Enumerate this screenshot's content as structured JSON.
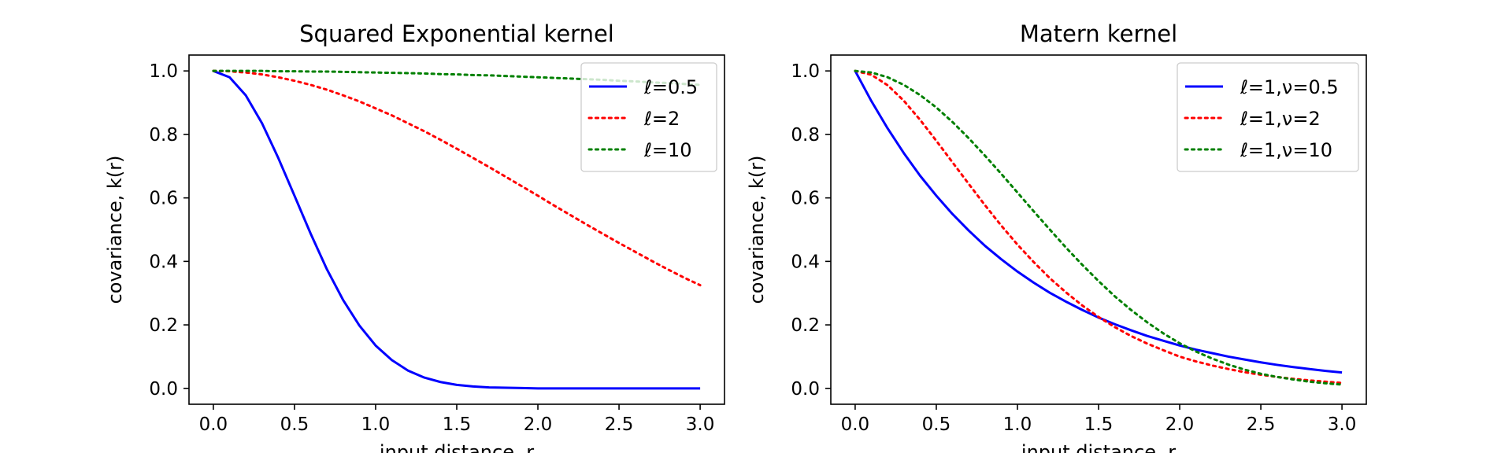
{
  "chart_data": [
    {
      "type": "line",
      "title": "Squared Exponential kernel",
      "xlabel": "input distance, r",
      "ylabel": "covariance, k(r)",
      "xlim": [
        -0.15,
        3.15
      ],
      "ylim": [
        -0.05,
        1.05
      ],
      "xticks": [
        "0.0",
        "0.5",
        "1.0",
        "1.5",
        "2.0",
        "2.5",
        "3.0"
      ],
      "yticks": [
        "0.0",
        "0.2",
        "0.4",
        "0.6",
        "0.8",
        "1.0"
      ],
      "legend_position": "top-right",
      "grid": false,
      "x": [
        0.0,
        0.1,
        0.2,
        0.3,
        0.4,
        0.5,
        0.6,
        0.7,
        0.8,
        0.9,
        1.0,
        1.1,
        1.2,
        1.3,
        1.4,
        1.5,
        1.6,
        1.7,
        1.8,
        1.9,
        2.0,
        2.1,
        2.2,
        2.3,
        2.4,
        2.5,
        2.6,
        2.7,
        2.8,
        2.9,
        3.0
      ],
      "series": [
        {
          "name": "ℓ=0.5",
          "color": "#0000ff",
          "dash": "solid",
          "values": [
            1.0,
            0.98,
            0.923,
            0.835,
            0.726,
            0.607,
            0.487,
            0.375,
            0.278,
            0.198,
            0.135,
            0.089,
            0.056,
            0.034,
            0.02,
            0.011,
            0.006,
            0.003,
            0.002,
            0.001,
            0.0,
            0.0,
            0.0,
            0.0,
            0.0,
            0.0,
            0.0,
            0.0,
            0.0,
            0.0,
            0.0
          ]
        },
        {
          "name": "ℓ=2",
          "color": "#ff0000",
          "dash": "dotted",
          "values": [
            1.0,
            0.999,
            0.995,
            0.989,
            0.98,
            0.969,
            0.956,
            0.941,
            0.923,
            0.904,
            0.882,
            0.86,
            0.835,
            0.81,
            0.783,
            0.755,
            0.726,
            0.697,
            0.667,
            0.637,
            0.607,
            0.576,
            0.546,
            0.516,
            0.487,
            0.458,
            0.43,
            0.402,
            0.375,
            0.349,
            0.325
          ]
        },
        {
          "name": "ℓ=10",
          "color": "#008000",
          "dash": "dotted",
          "values": [
            1.0,
            1.0,
            1.0,
            1.0,
            0.999,
            0.999,
            0.998,
            0.998,
            0.997,
            0.996,
            0.995,
            0.994,
            0.993,
            0.992,
            0.99,
            0.989,
            0.987,
            0.986,
            0.984,
            0.982,
            0.98,
            0.978,
            0.976,
            0.974,
            0.972,
            0.969,
            0.967,
            0.964,
            0.962,
            0.959,
            0.956
          ]
        }
      ]
    },
    {
      "type": "line",
      "title": "Matern kernel",
      "xlabel": "input distance, r",
      "ylabel": "covariance, k(r)",
      "xlim": [
        -0.15,
        3.15
      ],
      "ylim": [
        -0.05,
        1.05
      ],
      "xticks": [
        "0.0",
        "0.5",
        "1.0",
        "1.5",
        "2.0",
        "2.5",
        "3.0"
      ],
      "yticks": [
        "0.0",
        "0.2",
        "0.4",
        "0.6",
        "0.8",
        "1.0"
      ],
      "legend_position": "top-right",
      "grid": false,
      "x": [
        0.0,
        0.1,
        0.2,
        0.3,
        0.4,
        0.5,
        0.6,
        0.7,
        0.8,
        0.9,
        1.0,
        1.1,
        1.2,
        1.3,
        1.4,
        1.5,
        1.6,
        1.7,
        1.8,
        1.9,
        2.0,
        2.1,
        2.2,
        2.3,
        2.4,
        2.5,
        2.6,
        2.7,
        2.8,
        2.9,
        3.0
      ],
      "series": [
        {
          "name": "ℓ=1,ν=0.5",
          "color": "#0000ff",
          "dash": "solid",
          "values": [
            1.0,
            0.905,
            0.819,
            0.741,
            0.67,
            0.607,
            0.549,
            0.497,
            0.449,
            0.407,
            0.368,
            0.333,
            0.301,
            0.273,
            0.247,
            0.223,
            0.202,
            0.183,
            0.165,
            0.15,
            0.135,
            0.122,
            0.111,
            0.1,
            0.091,
            0.082,
            0.074,
            0.067,
            0.061,
            0.055,
            0.05
          ]
        },
        {
          "name": "ℓ=1,ν=2",
          "color": "#ff0000",
          "dash": "dotted",
          "values": [
            1.0,
            0.988,
            0.955,
            0.906,
            0.846,
            0.78,
            0.712,
            0.644,
            0.577,
            0.513,
            0.453,
            0.398,
            0.347,
            0.302,
            0.261,
            0.225,
            0.193,
            0.165,
            0.141,
            0.12,
            0.1,
            0.085,
            0.072,
            0.061,
            0.051,
            0.043,
            0.036,
            0.03,
            0.025,
            0.021,
            0.017
          ]
        },
        {
          "name": "ℓ=1,ν=10",
          "color": "#008000",
          "dash": "dotted",
          "values": [
            1.0,
            0.995,
            0.98,
            0.956,
            0.924,
            0.885,
            0.839,
            0.788,
            0.733,
            0.676,
            0.617,
            0.558,
            0.5,
            0.443,
            0.389,
            0.338,
            0.29,
            0.247,
            0.208,
            0.173,
            0.142,
            0.116,
            0.094,
            0.075,
            0.059,
            0.046,
            0.036,
            0.028,
            0.021,
            0.016,
            0.012
          ]
        }
      ]
    }
  ]
}
